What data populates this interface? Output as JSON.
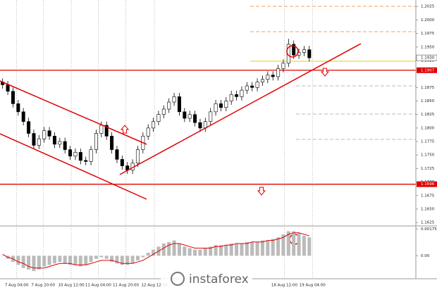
{
  "chart_data": {
    "type": "candlestick",
    "open": [
      1.1885,
      1.188,
      1.1868,
      1.1845,
      1.183,
      1.1812,
      1.179,
      1.1768,
      1.178,
      1.1795,
      1.1785,
      1.177,
      1.1775,
      1.176,
      1.1748,
      1.1755,
      1.174,
      1.1738,
      1.176,
      1.179,
      1.1805,
      1.1785,
      1.176,
      1.1742,
      1.173,
      1.1722,
      1.1735,
      1.176,
      1.1785,
      1.18,
      1.1812,
      1.1825,
      1.1835,
      1.1848,
      1.1858,
      1.183,
      1.1818,
      1.1825,
      1.181,
      1.18,
      1.1812,
      1.183,
      1.1845,
      1.1838,
      1.185,
      1.1862,
      1.1858,
      1.187,
      1.1878,
      1.1875,
      1.1885,
      1.189,
      1.1898,
      1.1895,
      1.191,
      1.192,
      1.1955,
      1.1935,
      1.194,
      1.1945
    ],
    "high": [
      1.1892,
      1.1887,
      1.1875,
      1.1852,
      1.1837,
      1.1819,
      1.1797,
      1.1787,
      1.1802,
      1.1802,
      1.1792,
      1.1782,
      1.1782,
      1.1767,
      1.1762,
      1.1762,
      1.1747,
      1.1767,
      1.1797,
      1.1812,
      1.1812,
      1.1792,
      1.1767,
      1.1749,
      1.1737,
      1.1742,
      1.1767,
      1.1792,
      1.1807,
      1.1819,
      1.1832,
      1.1842,
      1.1855,
      1.1865,
      1.1865,
      1.1837,
      1.1832,
      1.1832,
      1.1817,
      1.1819,
      1.1837,
      1.1852,
      1.1852,
      1.1857,
      1.1869,
      1.1869,
      1.1877,
      1.1885,
      1.1885,
      1.1892,
      1.1897,
      1.1905,
      1.1905,
      1.1917,
      1.1927,
      1.1965,
      1.1962,
      1.1947,
      1.1952,
      1.1952
    ],
    "low": [
      1.1873,
      1.1861,
      1.1838,
      1.1823,
      1.1805,
      1.1783,
      1.1761,
      1.1761,
      1.1773,
      1.1778,
      1.1763,
      1.1763,
      1.1753,
      1.1741,
      1.1741,
      1.1733,
      1.1731,
      1.1731,
      1.1753,
      1.1783,
      1.1778,
      1.1753,
      1.1735,
      1.1723,
      1.1715,
      1.1715,
      1.1728,
      1.1753,
      1.1778,
      1.1793,
      1.1805,
      1.1818,
      1.1828,
      1.1841,
      1.1823,
      1.1811,
      1.1811,
      1.1803,
      1.1793,
      1.1793,
      1.1805,
      1.1823,
      1.1831,
      1.1831,
      1.1843,
      1.1851,
      1.1851,
      1.1863,
      1.1868,
      1.1868,
      1.1878,
      1.1883,
      1.1888,
      1.1888,
      1.1903,
      1.1913,
      1.1928,
      1.1928,
      1.1933,
      1.1923
    ],
    "close": [
      1.188,
      1.1868,
      1.1845,
      1.183,
      1.1812,
      1.179,
      1.1768,
      1.178,
      1.1795,
      1.1785,
      1.177,
      1.1775,
      1.176,
      1.1748,
      1.1755,
      1.174,
      1.1738,
      1.176,
      1.179,
      1.1805,
      1.1785,
      1.176,
      1.1742,
      1.173,
      1.1722,
      1.1735,
      1.176,
      1.1785,
      1.18,
      1.1812,
      1.1825,
      1.1835,
      1.1848,
      1.1858,
      1.183,
      1.1818,
      1.1825,
      1.181,
      1.18,
      1.1812,
      1.183,
      1.1845,
      1.1838,
      1.185,
      1.1862,
      1.1858,
      1.187,
      1.1878,
      1.1875,
      1.1885,
      1.189,
      1.1898,
      1.1895,
      1.191,
      1.192,
      1.1955,
      1.1935,
      1.194,
      1.1945,
      1.193
    ],
    "xlim": [
      0,
      80
    ],
    "xticks": [
      {
        "value": 2.7,
        "label": "7 Aug 04:00"
      },
      {
        "value": 7.8,
        "label": "7 Aug 20:00"
      },
      {
        "value": 13.2,
        "label": "10 Aug 12:00"
      },
      {
        "value": 18.4,
        "label": "11 Aug 04:00"
      },
      {
        "value": 23.7,
        "label": "11 Aug 20:00"
      },
      {
        "value": 29.2,
        "label": "12 Aug 12:00"
      },
      {
        "value": 54.2,
        "label": "18 Aug 12:00"
      },
      {
        "value": 59.6,
        "label": "19 Aug 04:00"
      }
    ],
    "ylim": [
      1.162,
      1.2037
    ],
    "yticks": [
      1.2025,
      {
        "value": 1.2,
        "label": "1.2000"
      },
      1.1975,
      {
        "value": 1.195,
        "label": "1.1950"
      },
      1.1925,
      1.1875,
      {
        "value": 1.185,
        "label": "1.1850"
      },
      1.1825,
      {
        "value": 1.18,
        "label": "1.1800"
      },
      1.1775,
      {
        "value": 1.175,
        "label": "1.1750"
      },
      1.1725,
      {
        "value": 1.17,
        "label": "1.1700"
      },
      1.1675,
      {
        "value": 1.165,
        "label": "1.1650"
      },
      1.1625
    ],
    "levels": [
      {
        "value": 1.1907,
        "label": "1.1907",
        "color": "#e00000"
      },
      {
        "value": 1.1696,
        "label": "1.1696",
        "color": "#e00000"
      }
    ],
    "current_price": {
      "value": 1.193,
      "label": "1.1930"
    },
    "indicator": {
      "histogram": [
        0.0,
        -0.0002,
        -0.0004,
        -0.0006,
        -0.0008,
        -0.0009,
        -0.001,
        -0.0009,
        -0.0007,
        -0.0006,
        -0.0005,
        -0.0004,
        -0.0005,
        -0.0006,
        -0.0006,
        -0.0007,
        -0.0006,
        -0.0004,
        -0.0002,
        -0.0001,
        -0.0002,
        -0.0004,
        -0.0005,
        -0.0006,
        -0.0006,
        -0.0005,
        -0.0003,
        -0.0001,
        0.0002,
        0.0004,
        0.0006,
        0.0008,
        0.0009,
        0.001,
        0.0008,
        0.0006,
        0.0005,
        0.0004,
        0.0004,
        0.0005,
        0.0006,
        0.0007,
        0.0007,
        0.0007,
        0.0008,
        0.0008,
        0.0008,
        0.0009,
        0.0009,
        0.0009,
        0.001,
        0.001,
        0.0011,
        0.0012,
        0.0014,
        0.0016,
        0.0016,
        0.0015,
        0.0013,
        0.0012
      ],
      "signal": [
        0.0001,
        -0.0001,
        -0.0002,
        -0.0004,
        -0.0005,
        -0.0007,
        -0.0008,
        -0.0008,
        -0.0008,
        -0.0007,
        -0.0006,
        -0.0005,
        -0.0005,
        -0.0005,
        -0.0006,
        -0.0006,
        -0.0006,
        -0.0005,
        -0.0004,
        -0.0003,
        -0.0003,
        -0.0003,
        -0.0004,
        -0.0005,
        -0.0005,
        -0.0005,
        -0.0004,
        -0.0003,
        -0.0001,
        0.0001,
        0.0003,
        0.0005,
        0.0007,
        0.0008,
        0.0008,
        0.0007,
        0.0006,
        0.0005,
        0.0005,
        0.0005,
        0.0005,
        0.0006,
        0.0006,
        0.0007,
        0.0007,
        0.0008,
        0.0008,
        0.0008,
        0.0009,
        0.0009,
        0.0009,
        0.001,
        0.001,
        0.0011,
        0.0012,
        0.0014,
        0.0015,
        0.0015,
        0.0014,
        0.0013
      ],
      "ylim": [
        -0.0015,
        0.0019
      ],
      "yticks": [
        0.00175,
        {
          "value": 0,
          "label": "0.00"
        }
      ]
    },
    "watermark": "instaforex"
  }
}
